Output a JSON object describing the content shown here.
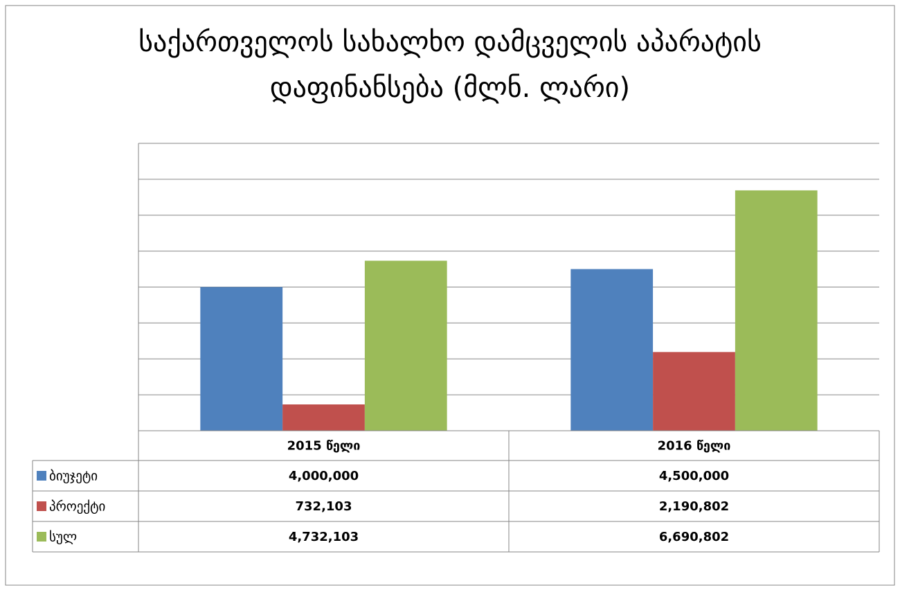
{
  "chart_data": {
    "type": "bar",
    "title": "საქართველოს სახალხო დამცველის აპარატის\nდაფინანსება (მლნ. ლარი)",
    "categories": [
      "2015 წელი",
      "2016 წელი"
    ],
    "series": [
      {
        "name": "ბიუჯეტი",
        "color": "#4f81bd",
        "values": [
          4000000,
          4500000
        ],
        "value_labels": [
          "4,000,000",
          "4,500,000"
        ]
      },
      {
        "name": "პროექტი",
        "color": "#c0504d",
        "values": [
          732103,
          2190802
        ],
        "value_labels": [
          "732,103",
          "2,190,802"
        ]
      },
      {
        "name": "სულ",
        "color": "#9bbb59",
        "values": [
          4732103,
          6690802
        ],
        "value_labels": [
          "4,732,103",
          "6,690,802"
        ]
      }
    ],
    "ylim": [
      0,
      8000000
    ],
    "yticks": [
      0,
      1000000,
      2000000,
      3000000,
      4000000,
      5000000,
      6000000,
      7000000,
      8000000
    ],
    "grid": true
  }
}
